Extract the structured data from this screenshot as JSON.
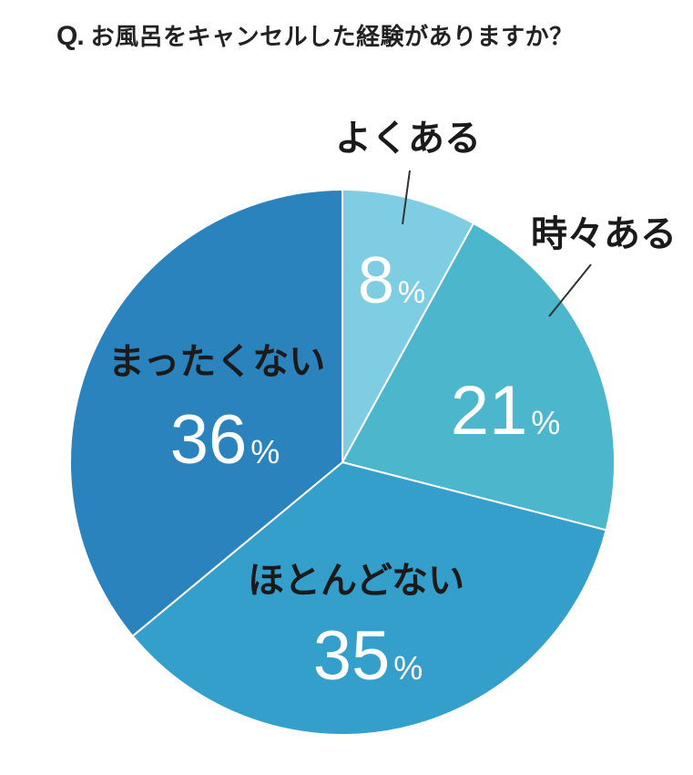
{
  "title": {
    "prefix": "Q.",
    "question": "お風呂をキャンセルした経験がありますか？"
  },
  "chart_data": {
    "type": "pie",
    "title": "お風呂をキャンセルした経験がありますか？",
    "unit": "%",
    "start_angle_deg": 0,
    "direction": "clockwise",
    "slices": [
      {
        "label": "よくある",
        "value": 8,
        "color": "#7ecde3"
      },
      {
        "label": "時々ある",
        "value": 21,
        "color": "#4bb6cc"
      },
      {
        "label": "ほとんどない",
        "value": 35,
        "color": "#339fca"
      },
      {
        "label": "まったくない",
        "value": 36,
        "color": "#2b83bd"
      }
    ]
  }
}
